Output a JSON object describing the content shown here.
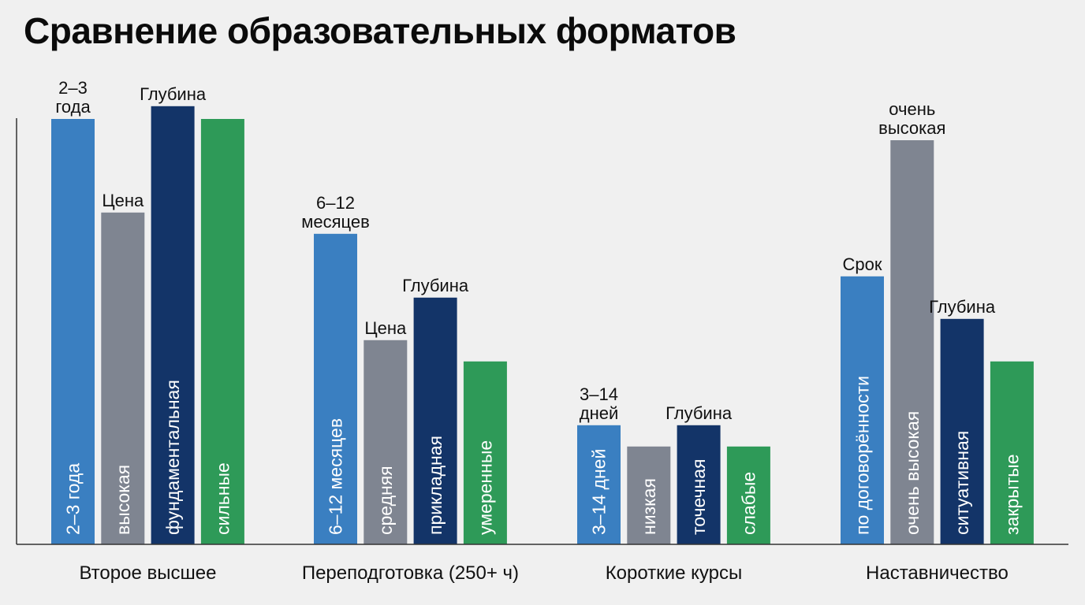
{
  "title": "Сравнение образовательных форматов",
  "colors": {
    "background": "#f0f0f0",
    "srok": "#3a7fc1",
    "cena": "#7f8591",
    "glubina": "#133468",
    "podderzhka": "#2e9a58",
    "axis": "#333333"
  },
  "chart_data": {
    "type": "bar",
    "title": "Сравнение образовательных форматов",
    "xlabel": "",
    "ylabel": "",
    "grid": false,
    "legend": "none",
    "categories": [
      "Второе высшее",
      "Переподготовка (250+ ч)",
      "Короткие курсы",
      "Наставничество"
    ],
    "series": [
      {
        "color_key": "srok",
        "values": [
          100,
          73,
          28,
          63
        ],
        "top_labels": [
          "2–3 года",
          "6–12 месяцев",
          "3–14 дней",
          "Срок"
        ],
        "inner_labels": [
          "2–3 года",
          "6–12 месяцев",
          "3–14 дней",
          "по договорённости"
        ]
      },
      {
        "color_key": "cena",
        "values": [
          78,
          48,
          23,
          95
        ],
        "top_labels": [
          "Цена",
          "Цена",
          "",
          "очень высокая"
        ],
        "inner_labels": [
          "высокая",
          "средняя",
          "низкая",
          "очень высокая"
        ]
      },
      {
        "color_key": "glubina",
        "values": [
          103,
          58,
          28,
          53
        ],
        "top_labels": [
          "Глубина",
          "Глубина",
          "Глубина",
          "Глубина"
        ],
        "inner_labels": [
          "фундаментальная",
          "прикладная",
          "точечная",
          "ситуативная"
        ]
      },
      {
        "color_key": "podderzhka",
        "values": [
          100,
          43,
          23,
          43
        ],
        "top_labels": [
          "",
          "",
          "",
          ""
        ],
        "inner_labels": [
          "сильные",
          "умеренные",
          "слабые",
          "закрытые"
        ]
      }
    ]
  }
}
